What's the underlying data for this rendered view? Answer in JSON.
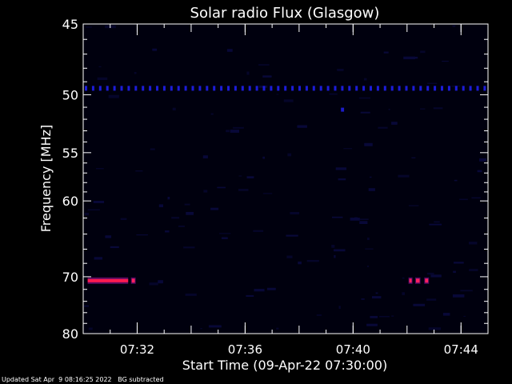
{
  "chart_data": {
    "type": "heatmap",
    "title": "Solar radio Flux (Glasgow)",
    "xlabel": "Start Time (09-Apr-22 07:30:00)",
    "ylabel": "Frequency [MHz]",
    "xlim_minutes": [
      "07:30:00",
      "07:45:00"
    ],
    "x_ticks": [
      "07:32",
      "07:36",
      "07:40",
      "07:44"
    ],
    "ylim": [
      45,
      80
    ],
    "y_scale": "reciprocal",
    "y_ticks": [
      45,
      50,
      55,
      60,
      70,
      80
    ],
    "colormap": [
      "#000010",
      "#10105a",
      "#2020c0",
      "#ff0040",
      "#ff4080"
    ],
    "features": [
      {
        "kind": "band",
        "freq": 49.5,
        "start": "07:30:00",
        "end": "07:45:00",
        "intensity": 0.4,
        "pattern": "dotted"
      },
      {
        "kind": "band",
        "freq": 70.6,
        "start": "07:30:10",
        "end": "07:31:40",
        "intensity": 1.0
      },
      {
        "kind": "spot",
        "freq": 70.6,
        "start": "07:31:48",
        "end": "07:31:55",
        "intensity": 1.0
      },
      {
        "kind": "spot",
        "freq": 70.6,
        "start": "07:42:05",
        "end": "07:42:10",
        "intensity": 0.9
      },
      {
        "kind": "spot",
        "freq": 70.6,
        "start": "07:42:20",
        "end": "07:42:28",
        "intensity": 1.0
      },
      {
        "kind": "spot",
        "freq": 70.6,
        "start": "07:42:40",
        "end": "07:42:47",
        "intensity": 0.9
      },
      {
        "kind": "spot",
        "freq": 51.2,
        "start": "07:39:33",
        "end": "07:39:40",
        "intensity": 0.4
      }
    ]
  },
  "footer": {
    "updated": "Updated Sat Apr  9 08:16:25 2022",
    "note": "BG subtracted"
  }
}
